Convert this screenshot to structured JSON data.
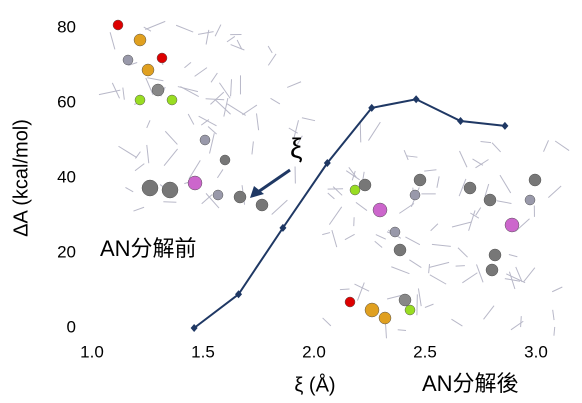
{
  "chart_data": {
    "type": "line",
    "x_label": "ξ (Å)",
    "y_label": "ΔA (kcal/mol)",
    "annotations": [
      "AN分解前",
      "AN分解後",
      "ξ"
    ],
    "series": [
      {
        "color": "#1f3864",
        "x": [
          1.46,
          1.66,
          1.86,
          2.06,
          2.26,
          2.46,
          2.66,
          2.86
        ],
        "values": [
          0,
          9,
          26.7,
          44,
          58.7,
          61,
          55.2,
          53.9
        ]
      }
    ],
    "xlim": [
      1,
      3
    ],
    "ylim": [
      0,
      80
    ],
    "xticks": [
      {
        "value": 1,
        "label": "1.0"
      },
      1.5,
      {
        "value": 2,
        "label": "2.0"
      },
      2.5,
      {
        "value": 3,
        "label": "3.0"
      }
    ],
    "yticks": [
      0,
      20,
      40,
      60,
      80
    ]
  }
}
